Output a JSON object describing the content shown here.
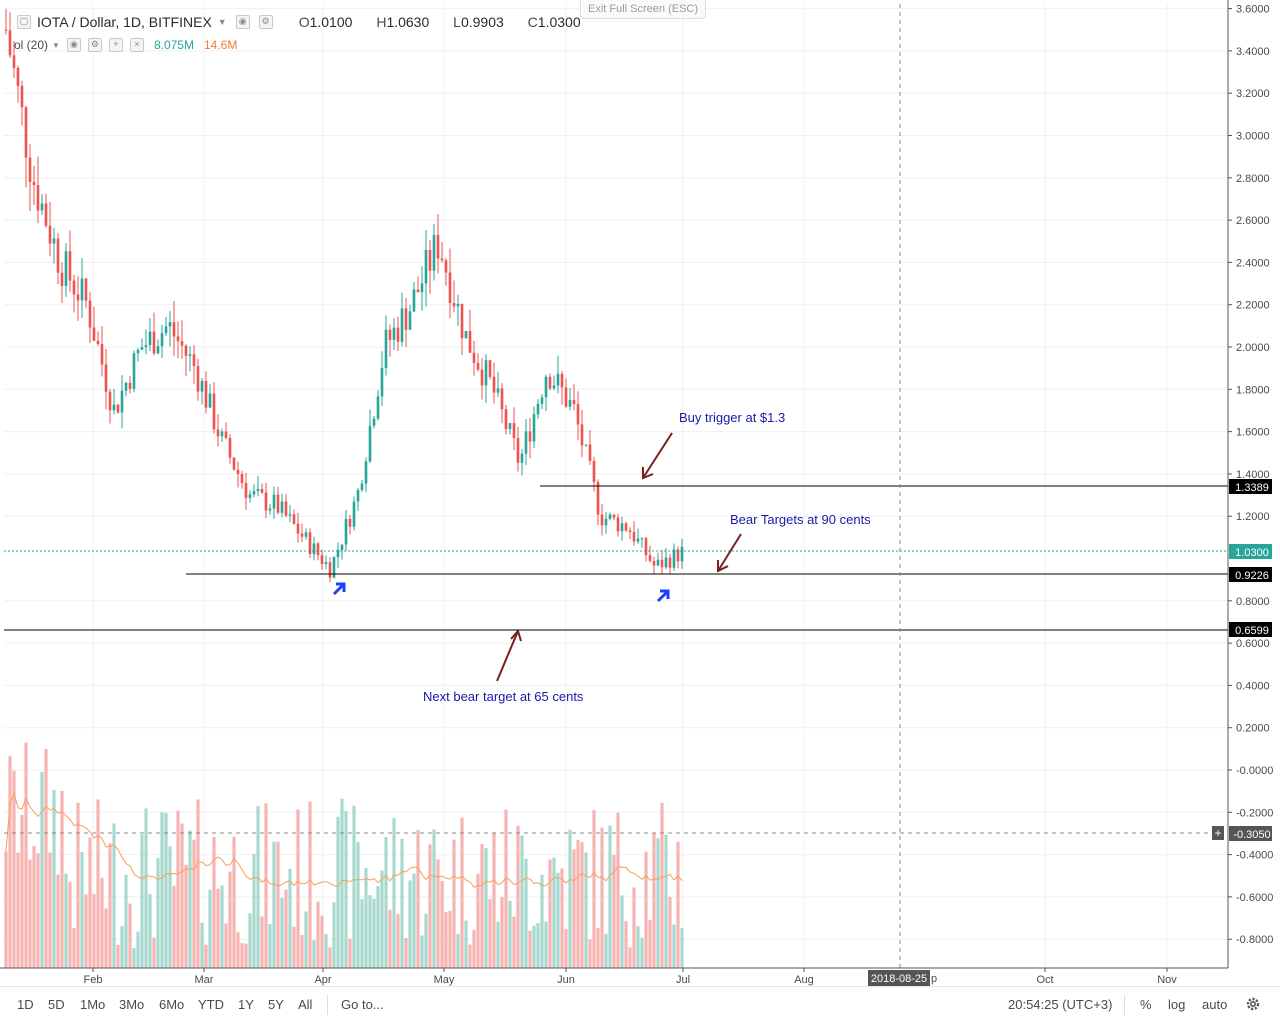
{
  "header": {
    "symbol": "IOTA / Dollar, 1D, BITFINEX",
    "open_label": "O",
    "open": "1.0100",
    "high_label": "H",
    "high": "1.0630",
    "low_label": "L",
    "low": "0.9903",
    "close_label": "C",
    "close": "1.0300"
  },
  "volume_indicator": {
    "label": "ol (20)",
    "volume": "8.075M",
    "ma": "14.6M"
  },
  "exit_fullscreen": "Exit Full Screen (ESC)",
  "price_axis": {
    "ticks": [
      "3.6000",
      "3.4000",
      "3.2000",
      "3.0000",
      "2.8000",
      "2.6000",
      "2.4000",
      "2.2000",
      "2.0000",
      "1.8000",
      "1.6000",
      "1.4000",
      "1.2000",
      "0.8000",
      "0.6000",
      "0.4000",
      "0.2000",
      "-0.0000",
      "-0.2000",
      "-0.4000",
      "-0.6000",
      "-0.8000"
    ],
    "marker_labels": [
      "1.3389",
      "1.0300",
      "0.9226",
      "0.6599"
    ],
    "cursor_label": "-0.3050"
  },
  "time_axis": {
    "ticks": [
      "Feb",
      "Mar",
      "Apr",
      "May",
      "Jun",
      "Jul",
      "Aug",
      "Oct",
      "Nov"
    ],
    "cursor_label": "2018-08-25",
    "partial_label": "p"
  },
  "annotations": {
    "buy_trigger": "Buy trigger at $1.3",
    "bear_targets": "Bear Targets at 90 cents",
    "next_bear_target": "Next bear target at 65 cents"
  },
  "colors": {
    "up": "#26a69a",
    "down": "#ef5350",
    "up_volume": "#a8d9cf",
    "down_volume": "#f6b5b3",
    "volume_ma": "#f5a05a",
    "annotation_text": "#1919a8",
    "annotation_arrow": "#7a1f1f",
    "pattern_arrow": "#1f3fff"
  },
  "chart_data": {
    "type": "candlestick",
    "title": "IOTA / Dollar, 1D, BITFINEX",
    "last_ohlc": {
      "open": 1.01,
      "high": 1.063,
      "low": 0.9903,
      "close": 1.03
    },
    "y_range": [
      -0.9,
      3.65
    ],
    "horizontal_levels": [
      1.3389,
      0.9226,
      0.6599
    ],
    "current_price": 1.03,
    "series": [
      {
        "name": "price_close_approx",
        "x": [
          "Jan-10",
          "Jan-17",
          "Jan-24",
          "Jan-31",
          "Feb-07",
          "Feb-14",
          "Feb-21",
          "Feb-28",
          "Mar-07",
          "Mar-14",
          "Mar-21",
          "Mar-28",
          "Apr-04",
          "Apr-11",
          "Apr-18",
          "Apr-25",
          "May-02",
          "May-09",
          "May-16",
          "May-23",
          "May-30",
          "Jun-06",
          "Jun-13",
          "Jun-20",
          "Jun-27",
          "Jul-01"
        ],
        "values": [
          3.5,
          2.8,
          2.4,
          2.2,
          1.7,
          2.0,
          2.1,
          1.9,
          1.55,
          1.3,
          1.25,
          1.1,
          0.95,
          1.3,
          2.0,
          2.2,
          2.5,
          2.05,
          1.8,
          1.45,
          1.9,
          1.7,
          1.2,
          1.15,
          0.96,
          1.03
        ]
      }
    ]
  },
  "bottom_bar": {
    "timeframes": [
      "1D",
      "5D",
      "1Mo",
      "3Mo",
      "6Mo",
      "YTD",
      "1Y",
      "5Y",
      "All"
    ],
    "goto": "Go to...",
    "clock": "20:54:25 (UTC+3)",
    "percent": "%",
    "log": "log",
    "auto": "auto"
  }
}
